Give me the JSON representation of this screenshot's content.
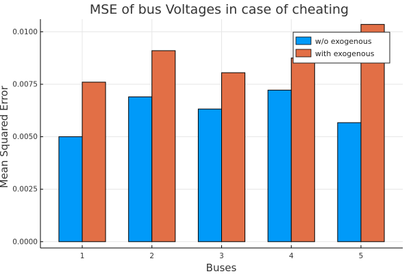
{
  "chart_data": {
    "type": "bar",
    "title": "MSE of bus Voltages in case of cheating",
    "xlabel": "Buses",
    "ylabel": "Mean Squared Error",
    "categories": [
      "1",
      "2",
      "3",
      "4",
      "5"
    ],
    "series": [
      {
        "name": "w/o exogenous",
        "color": "#009af9",
        "values": [
          0.005,
          0.0069,
          0.00632,
          0.00722,
          0.00567
        ]
      },
      {
        "name": "with exogenous",
        "color": "#e26f46",
        "values": [
          0.0076,
          0.0091,
          0.00805,
          0.00875,
          0.01035
        ]
      }
    ],
    "yticks": [
      0.0,
      0.0025,
      0.005,
      0.0075,
      0.01
    ],
    "ytick_labels": [
      "0.0000",
      "0.0025",
      "0.0050",
      "0.0075",
      "0.0100"
    ],
    "ylim": [
      -0.0003,
      0.0106
    ],
    "xlim": [
      0.4,
      5.6
    ],
    "grid": true,
    "legend_position": "top-right"
  }
}
